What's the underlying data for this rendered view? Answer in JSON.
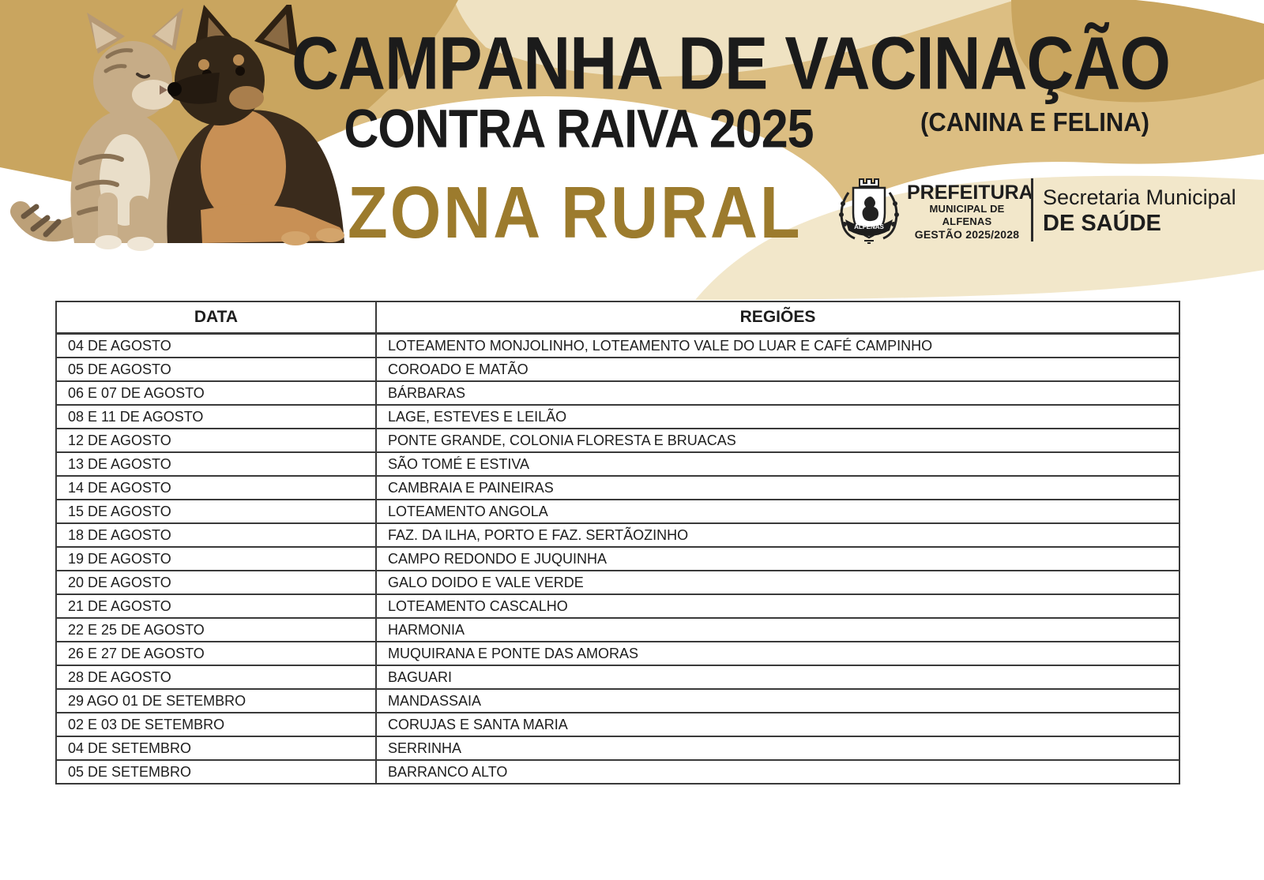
{
  "header": {
    "title": "CAMPANHA DE VACINAÇÃO",
    "subtitle": "CONTRA RAIVA 2025",
    "audience_note": "(CANINA E FELINA)",
    "zone_title": "ZONA RURAL",
    "logo": {
      "crest_ribbon_text": "ALFENAS",
      "org_name": "PREFEITURA",
      "org_subtitle": "MUNICIPAL DE ALFENAS",
      "org_term": "GESTÃO 2025/2028",
      "dept_line1": "Secretaria Municipal",
      "dept_line2": "DE SAÚDE"
    }
  },
  "colors": {
    "dark_gold": "#C9A55F",
    "medium_gold": "#DCBE82",
    "cream": "#EFE2C2",
    "light_cream": "#F2E7CA",
    "zone_title_gold": "#9C7B2D",
    "text_black": "#1D1D1D",
    "table_border": "#3A3A3A"
  },
  "table": {
    "columns": [
      "DATA",
      "REGIÕES"
    ],
    "rows": [
      [
        "04 DE AGOSTO",
        "LOTEAMENTO MONJOLINHO, LOTEAMENTO VALE DO LUAR E CAFÉ CAMPINHO"
      ],
      [
        "05 DE AGOSTO",
        "COROADO E MATÃO"
      ],
      [
        "06 E 07 DE AGOSTO",
        "BÁRBARAS"
      ],
      [
        "08 E 11 DE AGOSTO",
        "LAGE, ESTEVES E LEILÃO"
      ],
      [
        "12 DE AGOSTO",
        "PONTE GRANDE, COLONIA FLORESTA E BRUACAS"
      ],
      [
        "13 DE AGOSTO",
        "SÃO TOMÉ E ESTIVA"
      ],
      [
        "14 DE AGOSTO",
        "CAMBRAIA E PAINEIRAS"
      ],
      [
        "15 DE AGOSTO",
        "LOTEAMENTO ANGOLA"
      ],
      [
        "18 DE AGOSTO",
        "FAZ. DA ILHA, PORTO E FAZ. SERTÃOZINHO"
      ],
      [
        "19 DE AGOSTO",
        "CAMPO REDONDO E JUQUINHA"
      ],
      [
        "20 DE AGOSTO",
        "GALO DOIDO E VALE VERDE"
      ],
      [
        "21 DE AGOSTO",
        "LOTEAMENTO CASCALHO"
      ],
      [
        "22 E 25 DE AGOSTO",
        "HARMONIA"
      ],
      [
        "26 E 27 DE AGOSTO",
        "MUQUIRANA E PONTE DAS AMORAS"
      ],
      [
        "28 DE AGOSTO",
        "BAGUARI"
      ],
      [
        "29 AGO 01 DE SETEMBRO",
        "MANDASSAIA"
      ],
      [
        "02 E 03 DE SETEMBRO",
        "CORUJAS E SANTA MARIA"
      ],
      [
        "04 DE SETEMBRO",
        "SERRINHA"
      ],
      [
        "05 DE SETEMBRO",
        "BARRANCO ALTO"
      ]
    ]
  }
}
